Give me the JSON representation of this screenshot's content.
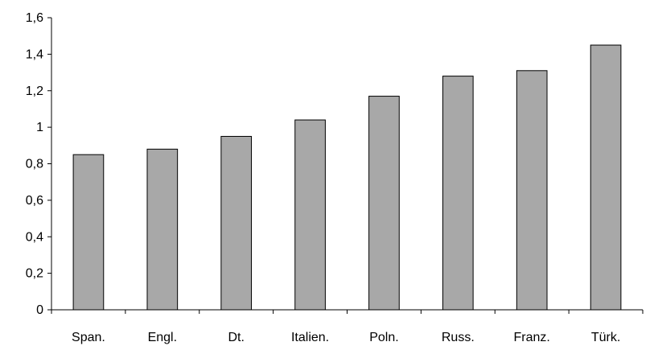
{
  "chart_data": {
    "type": "bar",
    "title": "",
    "xlabel": "",
    "ylabel": "",
    "categories": [
      "Span.",
      "Engl.",
      "Dt.",
      "Italien.",
      "Poln.",
      "Russ.",
      "Franz.",
      "Türk."
    ],
    "values": [
      0.85,
      0.88,
      0.95,
      1.04,
      1.17,
      1.28,
      1.31,
      1.45
    ],
    "ylim": [
      0,
      1.6
    ],
    "yticks": [
      0,
      0.2,
      0.4,
      0.6,
      0.8,
      1,
      1.2,
      1.4,
      1.6
    ],
    "ytick_labels": [
      "0",
      "0,2",
      "0,4",
      "0,6",
      "0,8",
      "1",
      "1,2",
      "1,4",
      "1,6"
    ],
    "grid": false,
    "legend": "none",
    "colors": {
      "bar_fill": "#a8a8a8",
      "bar_stroke": "#000000",
      "axis": "#000000"
    }
  }
}
